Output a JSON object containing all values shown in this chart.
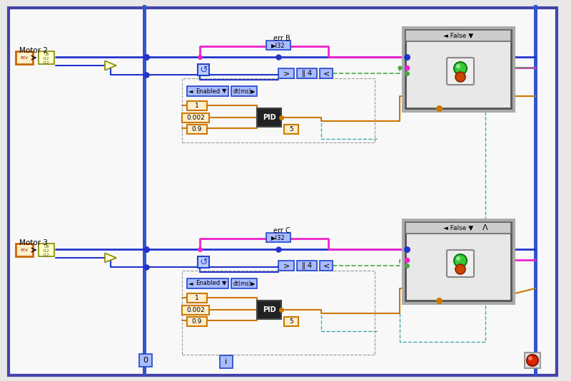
{
  "bg_color": "#f2f2f2",
  "wire_blue": "#2233cc",
  "wire_pink": "#ee22cc",
  "wire_orange": "#cc7700",
  "wire_green": "#44aa44",
  "wire_teal": "#44aaaa",
  "motor2_label": "Motor 2",
  "motor3_label": "Motor 3",
  "errB_label": "err B",
  "errC_label": "err C",
  "i32_label": "▶I32",
  "false_label": "False",
  "enabled_label": "Enabled",
  "dtms_label": "dt(ms)▶",
  "pid_label": "PID",
  "val_1": "1",
  "val_002": "0.002",
  "val_09": "0.9",
  "val_5": "5",
  "val_4": "4",
  "val_0": "0",
  "val_i": "i"
}
